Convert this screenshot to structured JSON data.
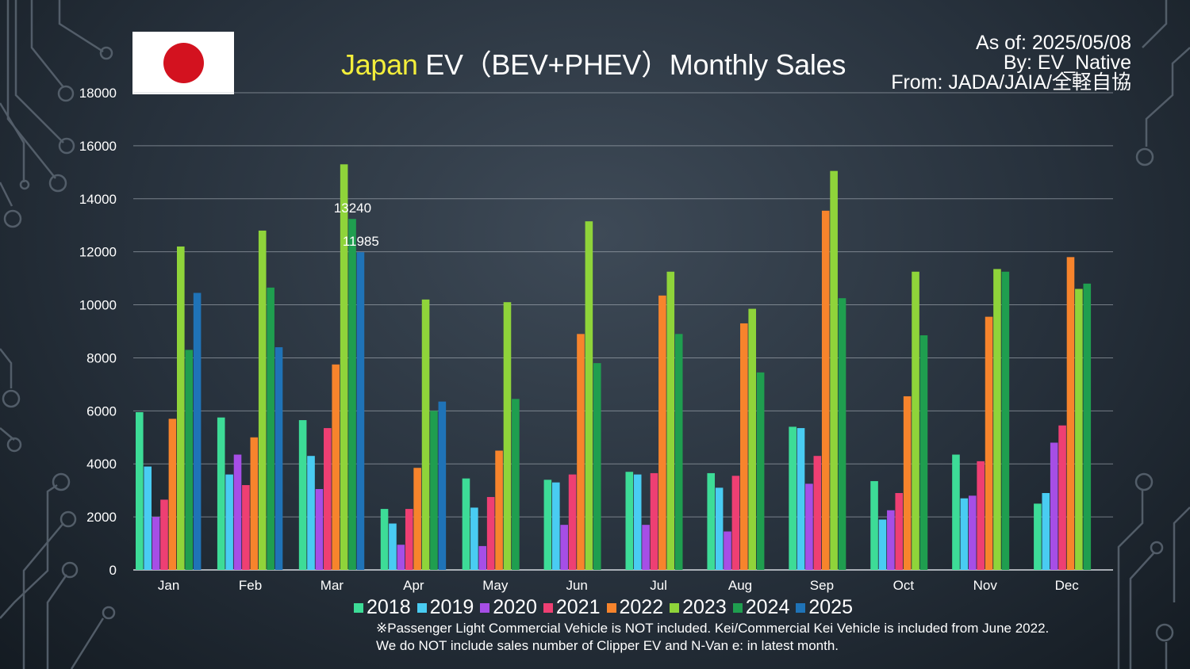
{
  "header": {
    "title_highlight": "Japan",
    "title_rest": " EV（BEV+PHEV）Monthly Sales",
    "as_of": "As of: 2025/05/08",
    "by": "By: EV_Native",
    "from": "From: JADA/JAIA/全軽自協"
  },
  "flag": {
    "bg_color": "#ffffff",
    "disc_color": "#d3121f"
  },
  "colors": {
    "highlight": "#f3ee3b",
    "gridline": "#b9c0c8",
    "text": "#ffffff"
  },
  "chart_data": {
    "type": "bar",
    "title": "Japan EV（BEV+PHEV）Monthly Sales",
    "xlabel": "",
    "ylabel": "",
    "ylim": [
      0,
      18000
    ],
    "yticks": [
      0,
      2000,
      4000,
      6000,
      8000,
      10000,
      12000,
      14000,
      16000,
      18000
    ],
    "grid": true,
    "legend_position": "bottom",
    "categories": [
      "Jan",
      "Feb",
      "Mar",
      "Apr",
      "May",
      "Jun",
      "Jul",
      "Aug",
      "Sep",
      "Oct",
      "Nov",
      "Dec"
    ],
    "series": [
      {
        "name": "2018",
        "color": "#3ddc97",
        "values": [
          5950,
          5750,
          5650,
          2300,
          3450,
          3400,
          3700,
          3650,
          5400,
          3350,
          4350,
          2500
        ]
      },
      {
        "name": "2019",
        "color": "#49ccf2",
        "values": [
          3900,
          3600,
          4300,
          1750,
          2350,
          3300,
          3600,
          3100,
          5350,
          1900,
          2700,
          2900
        ]
      },
      {
        "name": "2020",
        "color": "#a64ee6",
        "values": [
          2000,
          4350,
          3050,
          950,
          900,
          1700,
          1700,
          1450,
          3250,
          2250,
          2800,
          4800
        ]
      },
      {
        "name": "2021",
        "color": "#ee3f73",
        "values": [
          2650,
          3200,
          5350,
          2300,
          2750,
          3600,
          3650,
          3550,
          4300,
          2900,
          4100,
          5450
        ]
      },
      {
        "name": "2022",
        "color": "#f7842c",
        "values": [
          5700,
          5000,
          7750,
          3850,
          4500,
          8900,
          10350,
          9300,
          13550,
          6550,
          9550,
          11800
        ]
      },
      {
        "name": "2023",
        "color": "#8fd43a",
        "values": [
          12200,
          12800,
          15300,
          10200,
          10100,
          13150,
          11250,
          9850,
          15050,
          11250,
          11350,
          10600
        ]
      },
      {
        "name": "2024",
        "color": "#1f9e4f",
        "values": [
          8300,
          10650,
          13240,
          6000,
          6450,
          7800,
          8900,
          7450,
          10250,
          8850,
          11250,
          10800
        ]
      },
      {
        "name": "2025",
        "color": "#1f73b7",
        "values": [
          10450,
          8400,
          11985,
          6350,
          null,
          null,
          null,
          null,
          null,
          null,
          null,
          null
        ]
      }
    ],
    "data_labels": [
      {
        "category": "Mar",
        "series": "2024",
        "text": "13240"
      },
      {
        "category": "Mar",
        "series": "2025",
        "text": "11985"
      }
    ]
  },
  "footnotes": {
    "line1": "※Passenger Light Commercial Vehicle is NOT included. Kei/Commercial Kei Vehicle is included from June 2022.",
    "line2": "We do NOT include sales number of Clipper EV and N-Van e: in latest month."
  }
}
